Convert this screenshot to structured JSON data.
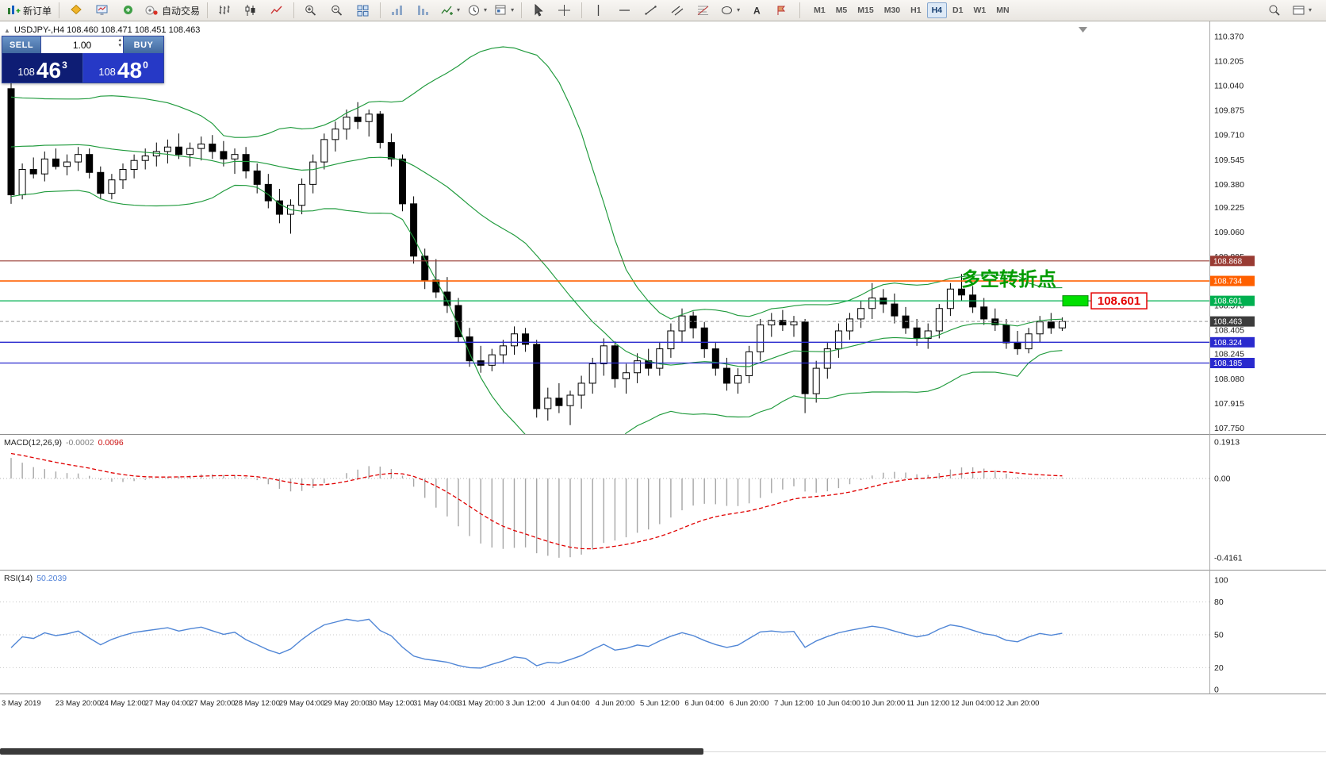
{
  "toolbar": {
    "left_items": [
      {
        "icon": "new-order",
        "label": "新订单",
        "name": "new-order"
      },
      {
        "sep": true
      },
      {
        "icon": "mql-market",
        "name": "mql-market"
      },
      {
        "icon": "market-watch",
        "name": "market-watch"
      },
      {
        "icon": "navigator",
        "name": "navigator"
      },
      {
        "icon": "autotrade",
        "label": "自动交易",
        "name": "autotrade"
      },
      {
        "sep": true
      },
      {
        "icon": "bar-chart",
        "name": "bar-chart"
      },
      {
        "icon": "candle-chart",
        "name": "candle-chart"
      },
      {
        "icon": "line-chart",
        "name": "line-chart"
      },
      {
        "sep": true
      },
      {
        "icon": "zoom-in",
        "name": "zoom-in"
      },
      {
        "icon": "zoom-out",
        "name": "zoom-out"
      },
      {
        "icon": "tile-windows",
        "name": "tile-windows"
      },
      {
        "sep": true
      },
      {
        "icon": "arrange-asc",
        "name": "arrange-ascending"
      },
      {
        "icon": "arrange-desc",
        "name": "arrange-descending"
      },
      {
        "icon": "indicators",
        "dropdown": true,
        "name": "indicators"
      },
      {
        "icon": "periods",
        "dropdown": true,
        "name": "periods"
      },
      {
        "icon": "templates",
        "dropdown": true,
        "name": "templates"
      },
      {
        "sep": true
      },
      {
        "icon": "cursor",
        "name": "cursor-tool"
      },
      {
        "icon": "crosshair",
        "name": "crosshair-tool"
      },
      {
        "sep": true
      },
      {
        "icon": "vline",
        "name": "vertical-line-tool"
      },
      {
        "icon": "hline",
        "name": "horizontal-line-tool"
      },
      {
        "icon": "trendline",
        "name": "trendline-tool"
      },
      {
        "icon": "channel",
        "name": "channel-tool"
      },
      {
        "icon": "fibonacci",
        "name": "fibonacci-tool"
      },
      {
        "icon": "shapes",
        "dropdown": true,
        "name": "shapes-tool"
      },
      {
        "icon": "text",
        "name": "text-tool"
      },
      {
        "icon": "arrow-label",
        "name": "arrow-label-tool"
      },
      {
        "sep": true
      }
    ],
    "timeframes": [
      "M1",
      "M5",
      "M15",
      "M30",
      "H1",
      "H4",
      "D1",
      "W1",
      "MN"
    ],
    "active_timeframe": "H4",
    "right_items": [
      {
        "icon": "search",
        "name": "search"
      },
      {
        "icon": "window-layout",
        "dropdown": true,
        "name": "window-layout"
      }
    ]
  },
  "chart": {
    "collapse_arrow": "▲",
    "header": "USDJPY-,H4  108.460 108.471 108.451 108.463"
  },
  "trade_panel": {
    "sell_label": "SELL",
    "buy_label": "BUY",
    "volume": "1.00",
    "spin_up": "▴",
    "spin_down": "▾",
    "sell_price": {
      "small": "108",
      "big": "46",
      "pip": "3"
    },
    "buy_price": {
      "small": "108",
      "big": "48",
      "pip": "0"
    }
  },
  "annotations": {
    "turning_point": "多空转折点",
    "turning_point_color": "#009b00",
    "price_tag": "108.601",
    "price_tag_color": "#e40000",
    "highlight_color": "#00e000"
  },
  "price_axis": {
    "ticks": [
      "110.370",
      "110.205",
      "110.040",
      "109.875",
      "109.710",
      "109.545",
      "109.380",
      "109.225",
      "109.060",
      "108.895",
      "108.730",
      "108.570",
      "108.405",
      "108.245",
      "108.080",
      "107.915",
      "107.750"
    ]
  },
  "level_badges": [
    {
      "text": "108.868",
      "price": 108.868,
      "color": "#993b33"
    },
    {
      "text": "108.734",
      "price": 108.734,
      "color": "#ff6000"
    },
    {
      "text": "108.601",
      "price": 108.601,
      "color": "#00b050"
    },
    {
      "text": "108.463",
      "price": 108.463,
      "color": "#3c3c3c"
    },
    {
      "text": "108.324",
      "price": 108.324,
      "color": "#2a2ace"
    },
    {
      "text": "108.185",
      "price": 108.185,
      "color": "#2a2ace"
    }
  ],
  "macd_panel": {
    "name": "MACD(12,26,9)",
    "value_main": "-0.0002",
    "value_signal": "0.0096",
    "axis": [
      "0.1913",
      "0.00",
      "-0.4161"
    ]
  },
  "rsi_panel": {
    "name": "RSI(14)",
    "value": "50.2039",
    "axis": [
      "100",
      "80",
      "50",
      "20",
      "0"
    ]
  },
  "time_axis": [
    "3 May 2019",
    "23 May 20:00",
    "24 May 12:00",
    "27 May 04:00",
    "27 May 20:00",
    "28 May 12:00",
    "29 May 04:00",
    "29 May 20:00",
    "30 May 12:00",
    "31 May 04:00",
    "31 May 20:00",
    "3 Jun 12:00",
    "4 Jun 04:00",
    "4 Jun 20:00",
    "5 Jun 12:00",
    "6 Jun 04:00",
    "6 Jun 20:00",
    "7 Jun 12:00",
    "10 Jun 04:00",
    "10 Jun 20:00",
    "11 Jun 12:00",
    "12 Jun 04:00",
    "12 Jun 20:00"
  ],
  "chart_data": {
    "type": "candlestick",
    "symbol": "USDJPY",
    "timeframe": "H4",
    "bid": 108.463,
    "y_range": [
      107.71,
      110.47
    ],
    "indicators": {
      "bollinger": {
        "period": 20,
        "deviation": 2
      },
      "macd": [
        12,
        26,
        9
      ],
      "rsi": 14
    },
    "macd_min": -0.4161,
    "highlight_level": 108.601,
    "hlines": [
      {
        "price": 108.868,
        "color": "#993b33",
        "width": 1.2
      },
      {
        "price": 108.734,
        "color": "#ff6000",
        "width": 1.6
      },
      {
        "price": 108.601,
        "color": "#00b050",
        "width": 1.3
      },
      {
        "price": 108.324,
        "color": "#2a2ace",
        "width": 1.3
      },
      {
        "price": 108.185,
        "color": "#2a2ace",
        "width": 1.3
      }
    ],
    "pre_closes": [
      109.2,
      109.23,
      109.26,
      109.29,
      109.31,
      109.34,
      109.37,
      109.4,
      109.42,
      109.45,
      109.48,
      109.51,
      109.54,
      109.56,
      109.59,
      109.62,
      109.65,
      109.68,
      109.7,
      109.73,
      109.76,
      109.79,
      109.82,
      109.84,
      109.87,
      109.9
    ],
    "candles": [
      [
        110.02,
        110.1,
        109.25,
        109.31
      ],
      [
        109.31,
        109.52,
        109.28,
        109.48
      ],
      [
        109.48,
        109.56,
        109.42,
        109.45
      ],
      [
        109.45,
        109.6,
        109.4,
        109.55
      ],
      [
        109.55,
        109.62,
        109.48,
        109.5
      ],
      [
        109.5,
        109.58,
        109.44,
        109.53
      ],
      [
        109.53,
        109.63,
        109.47,
        109.58
      ],
      [
        109.58,
        109.62,
        109.42,
        109.46
      ],
      [
        109.46,
        109.5,
        109.28,
        109.32
      ],
      [
        109.32,
        109.45,
        109.28,
        109.41
      ],
      [
        109.41,
        109.52,
        109.35,
        109.48
      ],
      [
        109.48,
        109.58,
        109.42,
        109.54
      ],
      [
        109.54,
        109.62,
        109.48,
        109.57
      ],
      [
        109.57,
        109.66,
        109.5,
        109.6
      ],
      [
        109.6,
        109.68,
        109.52,
        109.63
      ],
      [
        109.63,
        109.72,
        109.55,
        109.58
      ],
      [
        109.58,
        109.66,
        109.5,
        109.62
      ],
      [
        109.62,
        109.7,
        109.54,
        109.65
      ],
      [
        109.65,
        109.71,
        109.55,
        109.6
      ],
      [
        109.6,
        109.67,
        109.5,
        109.55
      ],
      [
        109.55,
        109.62,
        109.45,
        109.58
      ],
      [
        109.58,
        109.63,
        109.42,
        109.47
      ],
      [
        109.47,
        109.52,
        109.32,
        109.38
      ],
      [
        109.38,
        109.45,
        109.22,
        109.27
      ],
      [
        109.27,
        109.35,
        109.12,
        109.18
      ],
      [
        109.18,
        109.28,
        109.05,
        109.24
      ],
      [
        109.24,
        109.42,
        109.18,
        109.38
      ],
      [
        109.38,
        109.58,
        109.32,
        109.53
      ],
      [
        109.53,
        109.72,
        109.48,
        109.68
      ],
      [
        109.68,
        109.8,
        109.6,
        109.75
      ],
      [
        109.75,
        109.88,
        109.68,
        109.83
      ],
      [
        109.83,
        109.93,
        109.75,
        109.8
      ],
      [
        109.8,
        109.88,
        109.7,
        109.85
      ],
      [
        109.85,
        109.87,
        109.62,
        109.66
      ],
      [
        109.66,
        109.72,
        109.5,
        109.55
      ],
      [
        109.55,
        109.58,
        109.2,
        109.25
      ],
      [
        109.25,
        109.3,
        108.85,
        108.9
      ],
      [
        108.9,
        108.95,
        108.68,
        108.74
      ],
      [
        108.74,
        108.88,
        108.62,
        108.66
      ],
      [
        108.66,
        108.76,
        108.52,
        108.57
      ],
      [
        108.57,
        108.62,
        108.32,
        108.36
      ],
      [
        108.36,
        108.42,
        108.16,
        108.2
      ],
      [
        108.2,
        108.3,
        108.12,
        108.17
      ],
      [
        108.17,
        108.28,
        108.13,
        108.24
      ],
      [
        108.24,
        108.34,
        108.18,
        108.3
      ],
      [
        108.3,
        108.43,
        108.24,
        108.38
      ],
      [
        108.38,
        108.42,
        108.26,
        108.31
      ],
      [
        108.31,
        108.34,
        107.82,
        107.88
      ],
      [
        107.88,
        108.02,
        107.8,
        107.95
      ],
      [
        107.95,
        108.05,
        107.85,
        107.9
      ],
      [
        107.9,
        108.0,
        107.77,
        107.97
      ],
      [
        107.97,
        108.1,
        107.88,
        108.05
      ],
      [
        108.05,
        108.22,
        107.98,
        108.18
      ],
      [
        108.18,
        108.35,
        108.1,
        108.3
      ],
      [
        108.3,
        108.33,
        108.02,
        108.08
      ],
      [
        108.08,
        108.18,
        107.98,
        108.12
      ],
      [
        108.12,
        108.25,
        108.05,
        108.2
      ],
      [
        108.2,
        108.28,
        108.1,
        108.15
      ],
      [
        108.15,
        108.32,
        108.1,
        108.28
      ],
      [
        108.28,
        108.45,
        108.22,
        108.4
      ],
      [
        108.4,
        108.55,
        108.32,
        108.5
      ],
      [
        108.5,
        108.53,
        108.35,
        108.42
      ],
      [
        108.42,
        108.46,
        108.22,
        108.28
      ],
      [
        108.28,
        108.32,
        108.1,
        108.15
      ],
      [
        108.15,
        108.22,
        108.0,
        108.05
      ],
      [
        108.05,
        108.15,
        107.98,
        108.1
      ],
      [
        108.1,
        108.3,
        108.05,
        108.26
      ],
      [
        108.26,
        108.48,
        108.2,
        108.44
      ],
      [
        108.44,
        108.52,
        108.36,
        108.47
      ],
      [
        108.47,
        108.54,
        108.4,
        108.44
      ],
      [
        108.44,
        108.5,
        108.36,
        108.46
      ],
      [
        108.46,
        108.48,
        107.85,
        107.98
      ],
      [
        107.98,
        108.2,
        107.92,
        108.15
      ],
      [
        108.15,
        108.32,
        108.08,
        108.28
      ],
      [
        108.28,
        108.45,
        108.22,
        108.4
      ],
      [
        108.4,
        108.52,
        108.34,
        108.48
      ],
      [
        108.48,
        108.6,
        108.42,
        108.55
      ],
      [
        108.55,
        108.72,
        108.48,
        108.62
      ],
      [
        108.62,
        108.68,
        108.52,
        108.58
      ],
      [
        108.58,
        108.65,
        108.45,
        108.5
      ],
      [
        108.5,
        108.56,
        108.38,
        108.42
      ],
      [
        108.42,
        108.48,
        108.3,
        108.35
      ],
      [
        108.35,
        108.45,
        108.28,
        108.4
      ],
      [
        108.4,
        108.58,
        108.35,
        108.55
      ],
      [
        108.55,
        108.72,
        108.5,
        108.68
      ],
      [
        108.68,
        108.78,
        108.6,
        108.64
      ],
      [
        108.64,
        108.7,
        108.52,
        108.56
      ],
      [
        108.56,
        108.62,
        108.44,
        108.48
      ],
      [
        108.48,
        108.55,
        108.4,
        108.44
      ],
      [
        108.44,
        108.48,
        108.28,
        108.32
      ],
      [
        108.32,
        108.4,
        108.24,
        108.28
      ],
      [
        108.28,
        108.42,
        108.25,
        108.38
      ],
      [
        108.38,
        108.5,
        108.32,
        108.46
      ],
      [
        108.46,
        108.52,
        108.38,
        108.42
      ],
      [
        108.42,
        108.49,
        108.4,
        108.463
      ]
    ]
  }
}
